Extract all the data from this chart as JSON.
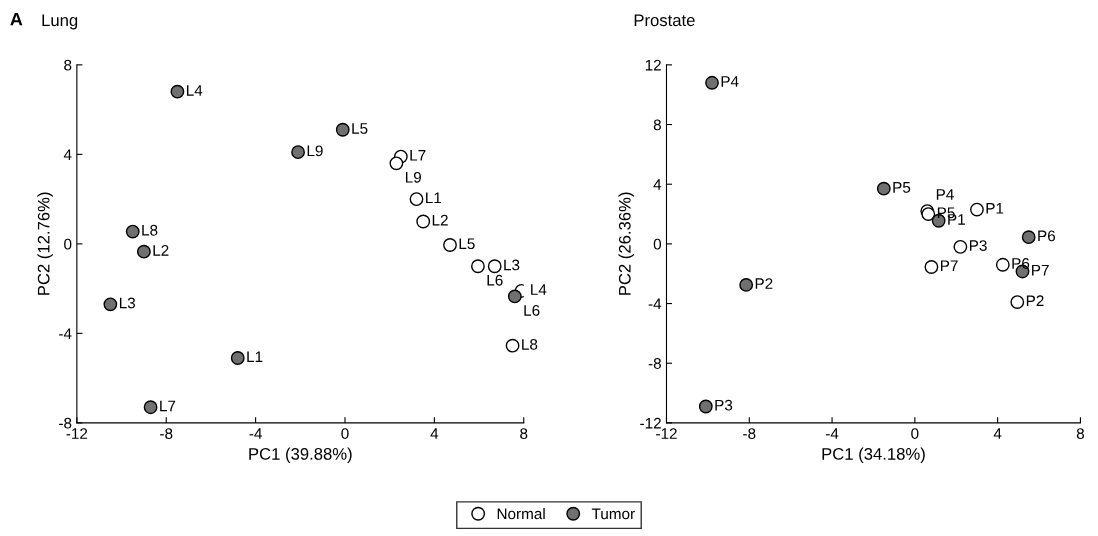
{
  "chart_data": [
    {
      "type": "scatter",
      "title": "Lung",
      "xlabel": "PC1 (39.88%)",
      "ylabel": "PC2 (12.76%)",
      "annotations": [
        "A"
      ],
      "xlim": [
        -12,
        8
      ],
      "xticks": [
        -12,
        -8,
        -4,
        0,
        4,
        8
      ],
      "ylim": [
        -8,
        8
      ],
      "yticks": [
        -8,
        -4,
        0,
        4,
        8
      ],
      "grid": false,
      "legend": "bottom",
      "marker": "circle",
      "series": [
        {
          "name": "Normal",
          "color": "#ffffff",
          "x": [
            3.2,
            3.5,
            6.7,
            7.9,
            4.7,
            5.95,
            2.5,
            7.5,
            2.3
          ],
          "values": [
            2.0,
            1.0,
            -1.0,
            -2.1,
            -0.05,
            -1.0,
            3.9,
            -4.55,
            3.6
          ],
          "value_labels": [
            "L1",
            "L2",
            "L3",
            "L4",
            "L5",
            "L6",
            "L7",
            "L8",
            "L9"
          ]
        },
        {
          "name": "Tumor",
          "color": "#707070",
          "x": [
            -4.8,
            -9.0,
            -10.5,
            -7.5,
            -0.1,
            7.6,
            -8.7,
            -9.5,
            -2.1
          ],
          "values": [
            -5.1,
            -0.35,
            -2.7,
            6.8,
            5.1,
            -2.35,
            -7.3,
            0.55,
            4.1
          ],
          "value_labels": [
            "L1",
            "L2",
            "L3",
            "L4",
            "L5",
            "L6",
            "L7",
            "L8",
            "L9"
          ]
        }
      ]
    },
    {
      "type": "scatter",
      "title": "Prostate",
      "xlabel": "PC1 (34.18%)",
      "ylabel": "PC2 (26.36%)",
      "xlim": [
        -12,
        8
      ],
      "xticks": [
        -12,
        -8,
        -4,
        0,
        4,
        8
      ],
      "ylim": [
        -12,
        12
      ],
      "yticks": [
        -12,
        -8,
        -4,
        0,
        4,
        8,
        12
      ],
      "grid": false,
      "legend": "bottom",
      "marker": "circle",
      "series": [
        {
          "name": "Normal",
          "color": "#ffffff",
          "x": [
            3.0,
            4.95,
            2.2,
            0.6,
            0.65,
            4.25,
            0.8
          ],
          "values": [
            2.3,
            -3.9,
            -0.2,
            2.2,
            2.0,
            -1.4,
            -1.55
          ],
          "value_labels": [
            "P1",
            "P2",
            "P3",
            "P4",
            "P5",
            "P6",
            "P7"
          ]
        },
        {
          "name": "Tumor",
          "color": "#707070",
          "x": [
            1.15,
            -8.15,
            -10.1,
            -9.8,
            -1.5,
            5.5,
            5.2
          ],
          "values": [
            1.55,
            -2.75,
            -10.9,
            10.8,
            3.7,
            0.45,
            -1.85
          ],
          "value_labels": [
            "P1",
            "P2",
            "P3",
            "P4",
            "P5",
            "P6",
            "P7"
          ]
        }
      ]
    }
  ]
}
